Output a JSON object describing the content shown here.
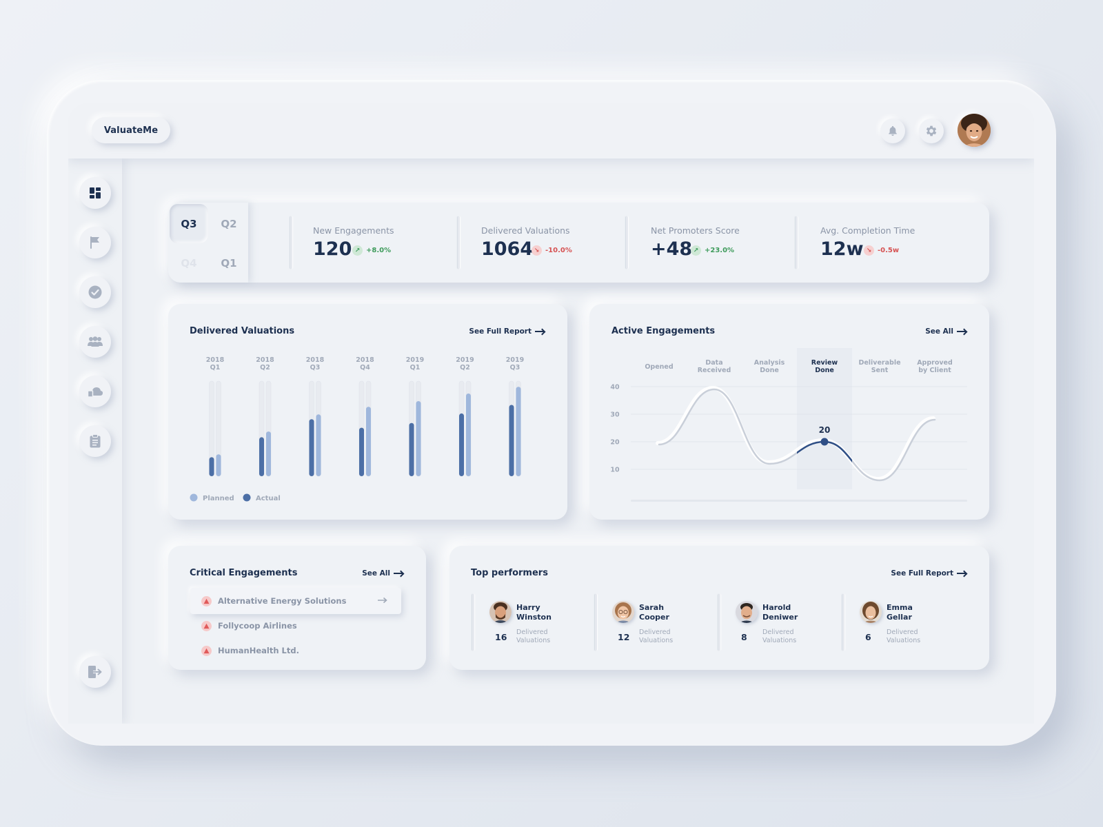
{
  "app": {
    "name": "ValuateMe"
  },
  "quarters": [
    {
      "label": "Q3",
      "state": "selected"
    },
    {
      "label": "Q2",
      "state": "normal"
    },
    {
      "label": "Q4",
      "state": "disabled"
    },
    {
      "label": "Q1",
      "state": "normal"
    }
  ],
  "kpis": [
    {
      "label": "New Engagements",
      "value": "120",
      "delta": "+8.0%",
      "trend": "up"
    },
    {
      "label": "Delivered Valuations",
      "value": "1064",
      "delta": "-10.0%",
      "trend": "down"
    },
    {
      "label": "Net Promoters Score",
      "value": "+48",
      "delta": "+23.0%",
      "trend": "up"
    },
    {
      "label": "Avg. Completion Time",
      "value": "12w",
      "delta": "-0.5w",
      "trend": "down"
    }
  ],
  "delivered": {
    "title": "Delivered Valuations",
    "link": "See Full Report",
    "legend": {
      "planned": "Planned",
      "actual": "Actual"
    }
  },
  "active": {
    "title": "Active Engagements",
    "link": "See All",
    "highlight_label": "20"
  },
  "critical": {
    "title": "Critical Engagements",
    "link": "See All",
    "items": [
      "Alternative Energy Solutions",
      "Follycoop Airlines",
      "HumanHealth Ltd."
    ]
  },
  "performers": {
    "title": "Top performers",
    "link": "See Full Report",
    "people": [
      {
        "first": "Harry",
        "last": "Winston",
        "count": "16",
        "caption1": "Delivered",
        "caption2": "Valuations"
      },
      {
        "first": "Sarah",
        "last": "Cooper",
        "count": "12",
        "caption1": "Delivered",
        "caption2": "Valuations"
      },
      {
        "first": "Harold",
        "last": "Deniwer",
        "count": "8",
        "caption1": "Delivered",
        "caption2": "Valuations"
      },
      {
        "first": "Emma",
        "last": "Gellar",
        "count": "6",
        "caption1": "Delivered",
        "caption2": "Valuations"
      }
    ]
  },
  "icons": {
    "topbar": [
      "bell-icon",
      "gear-icon"
    ],
    "sidebar": [
      "dashboard-icon",
      "flag-icon",
      "check-circle-icon",
      "users-icon",
      "cloud-files-icon",
      "clipboard-icon",
      "logout-icon"
    ]
  },
  "colors": {
    "navy": "#1d3050",
    "actual_bar": "#4c6fa6",
    "planned_bar": "#9fb7dc",
    "positive": "#3e9b5b",
    "negative": "#d65252"
  },
  "chart_data": [
    {
      "type": "bar",
      "title": "Delivered Valuations",
      "categories": [
        "2018 Q1",
        "2018 Q2",
        "2018 Q3",
        "2018 Q4",
        "2019 Q1",
        "2019 Q2",
        "2019 Q3"
      ],
      "series": [
        {
          "name": "Actual",
          "values": [
            20,
            41,
            60,
            51,
            56,
            66,
            75
          ]
        },
        {
          "name": "Planned",
          "values": [
            23,
            47,
            65,
            73,
            79,
            87,
            94
          ]
        }
      ],
      "ylim": [
        0,
        100
      ],
      "legend": "bottom-left"
    },
    {
      "type": "line",
      "title": "Active Engagements",
      "categories": [
        "Opened",
        "Data Received",
        "Analysis Done",
        "Review Done",
        "Deliverable Sent",
        "Approved by Client"
      ],
      "series": [
        {
          "values": [
            19,
            39,
            12,
            20,
            6,
            28
          ]
        }
      ],
      "yticks": [
        10,
        20,
        30,
        40
      ],
      "highlight": {
        "category": "Review Done",
        "value": 20
      }
    }
  ]
}
